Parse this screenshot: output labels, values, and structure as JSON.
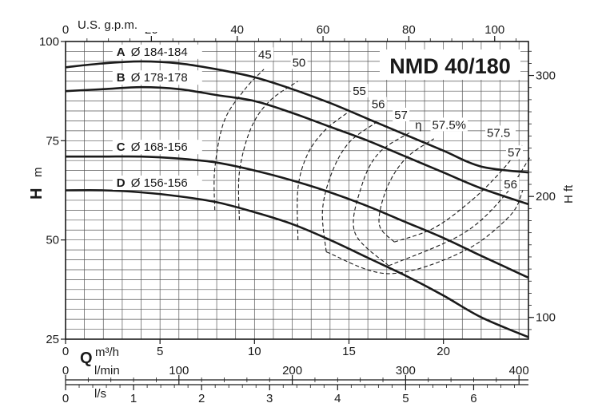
{
  "chart_data": {
    "type": "line",
    "title": "NMD 40/180",
    "ylabel_left": "H",
    "ylabel_left_unit": "m",
    "ylabel_right": "H ft",
    "xlabel_bottom": "Q",
    "xlabel_bottom_unit": "m³/h",
    "x_unit_lmin": "l/min",
    "x_unit_ls": "l/s",
    "x_unit_gpm": "U.S. g.p.m.",
    "xlim": [
      0,
      24.5
    ],
    "ylim": [
      25,
      100
    ],
    "grid": true,
    "y_ticks_m": [
      "25",
      "50",
      "75",
      "100"
    ],
    "x_ticks_m3h": [
      "0",
      "5",
      "10",
      "15",
      "20"
    ],
    "x_ticks_lmin": [
      "0",
      "100",
      "200",
      "300",
      "400"
    ],
    "x_ticks_ls": [
      "0",
      "1",
      "2",
      "3",
      "4",
      "5",
      "6"
    ],
    "x_ticks_gpm": [
      "0",
      "20",
      "40",
      "60",
      "80",
      "100"
    ],
    "y_ticks_ft": [
      "100",
      "200",
      "300"
    ],
    "series": [
      {
        "letter": "A",
        "name": "Ø 184-184",
        "x": [
          0,
          2,
          4,
          6,
          8,
          10,
          12,
          14,
          16,
          18,
          20,
          22,
          24.5
        ],
        "y": [
          93.5,
          94.5,
          95,
          94.5,
          93,
          91,
          88,
          84.5,
          80.5,
          76.5,
          72.5,
          68.5,
          67
        ]
      },
      {
        "letter": "B",
        "name": "Ø 178-178",
        "x": [
          0,
          2,
          4,
          6,
          8,
          10,
          12,
          14,
          16,
          18,
          20,
          22,
          24.5
        ],
        "y": [
          87.5,
          88,
          88.5,
          88,
          86.5,
          85,
          82,
          78.5,
          75,
          71,
          67,
          63,
          59
        ]
      },
      {
        "letter": "C",
        "name": "Ø 168-156",
        "x": [
          0,
          2,
          4,
          6,
          8,
          10,
          12,
          14,
          16,
          18,
          20,
          22,
          24.5
        ],
        "y": [
          71,
          71,
          71,
          70.5,
          69.5,
          67.5,
          65,
          62,
          58.5,
          54.5,
          50.5,
          46,
          40.5
        ]
      },
      {
        "letter": "D",
        "name": "Ø 156-156",
        "x": [
          0,
          2,
          4,
          6,
          8,
          10,
          12,
          14,
          16,
          18,
          20,
          22,
          24.5
        ],
        "y": [
          62.5,
          62.5,
          62,
          61,
          59.5,
          57,
          54,
          50,
          45.5,
          41,
          36,
          30.5,
          25.5
        ]
      }
    ],
    "efficiency_curves": [
      {
        "label": "45",
        "x": [
          7.9,
          7.9,
          8.4,
          9.5,
          10.5
        ],
        "y": [
          57.5,
          68,
          80,
          88,
          93
        ]
      },
      {
        "label": "50",
        "x": [
          9.2,
          9.2,
          9.8,
          10.8,
          12.3
        ],
        "y": [
          55,
          67,
          78,
          85,
          90
        ]
      },
      {
        "label": "55",
        "x": [
          12.3,
          12.3,
          12.8,
          13.7,
          14.9
        ],
        "y": [
          50,
          63,
          71.5,
          77.5,
          82
        ]
      },
      {
        "label": "56",
        "x": [
          13.8,
          13.6,
          14.1,
          15.0,
          16.4
        ],
        "y": [
          47,
          57.5,
          67,
          74.5,
          79.5
        ]
      },
      {
        "label": "57",
        "x": [
          17.1,
          15.3,
          15.7,
          16.6,
          18.2
        ],
        "y": [
          43.5,
          52,
          64,
          72,
          77
        ]
      },
      {
        "label": "57.5",
        "x": [
          17.4,
          16.6,
          17.0,
          18.0,
          19.5
        ],
        "y": [
          49.5,
          54,
          63,
          70.5,
          75.5
        ]
      },
      {
        "label": "57.5",
        "x": [
          17.4,
          19.5,
          21.5,
          23.0,
          24.2
        ],
        "y": [
          49.5,
          53,
          60,
          67,
          74
        ]
      },
      {
        "label": "57",
        "x": [
          17.1,
          21.0,
          23.2,
          24.6
        ],
        "y": [
          43.5,
          51.5,
          61,
          71
        ]
      },
      {
        "label": "56",
        "x": [
          13.8,
          17.1,
          21.0,
          23.5,
          24.2
        ],
        "y": [
          47,
          41.5,
          47,
          56,
          62.5
        ]
      }
    ],
    "efficiency_labels": {
      "eta": "η",
      "tags": [
        "45",
        "50",
        "55",
        "56",
        "57",
        "57.5%",
        "57.5",
        "57",
        "56"
      ]
    }
  }
}
